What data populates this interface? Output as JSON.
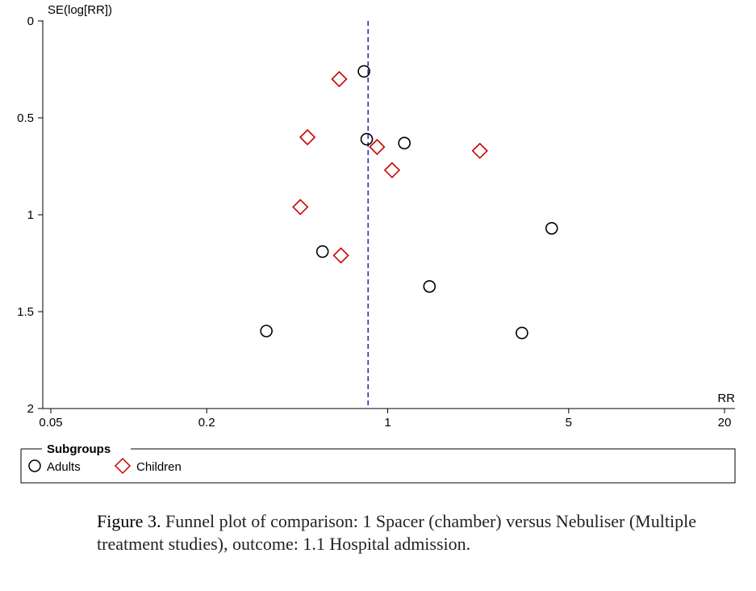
{
  "chart_data": {
    "type": "scatter",
    "y_axis_title": "SE(log[RR])",
    "x_axis_title": "RR",
    "x_scale": "log",
    "xlim": [
      0.05,
      20
    ],
    "ylim": [
      0,
      2
    ],
    "y_inverted": true,
    "x_ticks": [
      0.05,
      0.2,
      1,
      5,
      20
    ],
    "x_tick_labels": [
      "0.05",
      "0.2",
      "1",
      "5",
      "20"
    ],
    "y_ticks": [
      0,
      0.5,
      1,
      1.5,
      2
    ],
    "y_tick_labels": [
      "0",
      "0.5",
      "1",
      "1.5",
      "2"
    ],
    "reference_line_rr": 0.84,
    "series": [
      {
        "name": "Adults",
        "marker": "circle",
        "color": "#000000",
        "points": [
          {
            "rr": 0.81,
            "se": 0.26
          },
          {
            "rr": 0.83,
            "se": 0.61
          },
          {
            "rr": 1.16,
            "se": 0.63
          },
          {
            "rr": 4.3,
            "se": 1.07
          },
          {
            "rr": 0.56,
            "se": 1.19
          },
          {
            "rr": 1.45,
            "se": 1.37
          },
          {
            "rr": 0.34,
            "se": 1.6
          },
          {
            "rr": 3.3,
            "se": 1.61
          }
        ]
      },
      {
        "name": "Children",
        "marker": "diamond",
        "color": "#cc0000",
        "points": [
          {
            "rr": 0.65,
            "se": 0.3
          },
          {
            "rr": 0.49,
            "se": 0.6
          },
          {
            "rr": 0.91,
            "se": 0.65
          },
          {
            "rr": 2.27,
            "se": 0.67
          },
          {
            "rr": 1.04,
            "se": 0.77
          },
          {
            "rr": 0.46,
            "se": 0.96
          },
          {
            "rr": 0.66,
            "se": 1.21
          }
        ]
      }
    ]
  },
  "legend": {
    "title": "Subgroups",
    "items": [
      {
        "label": "Adults",
        "marker": "circle"
      },
      {
        "label": "Children",
        "marker": "diamond"
      }
    ]
  },
  "caption": {
    "label": "Figure 3.",
    "text": " Funnel plot of comparison: 1 Spacer (chamber) versus Nebuliser (Multiple treatment studies), outcome: 1.1 Hospital admission."
  },
  "colors": {
    "reference_line": "#2222aa",
    "children": "#cc0000",
    "adults": "#000000"
  }
}
